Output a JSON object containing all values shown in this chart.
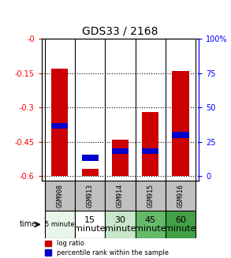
{
  "title": "GDS33 / 2168",
  "samples": [
    "GSM908",
    "GSM913",
    "GSM914",
    "GSM915",
    "GSM916"
  ],
  "time_labels": [
    "5 minute",
    "15\nminute",
    "30\nminute",
    "45\nminute",
    "60\nminute"
  ],
  "time_colors": [
    "#e8f5e9",
    "#ffffff",
    "#c8e6c9",
    "#66bb6a",
    "#43a047"
  ],
  "log_ratios": [
    -0.13,
    -0.57,
    -0.44,
    -0.32,
    -0.14
  ],
  "percentile_values": [
    -0.38,
    -0.52,
    -0.49,
    -0.49,
    -0.42
  ],
  "bar_bottom": -0.6,
  "ylim_min": -0.62,
  "ylim_max": 0.0,
  "yticks": [
    0,
    -0.15,
    -0.3,
    -0.45,
    -0.6
  ],
  "ytick_labels": [
    "-0",
    "-0.15",
    "-0.3",
    "-0.45",
    "-0.6"
  ],
  "right_yticks": [
    0,
    0.25,
    0.5,
    0.75,
    1.0
  ],
  "right_ytick_labels": [
    "0",
    "25",
    "50",
    "75",
    "100%"
  ],
  "bar_color": "#cc0000",
  "percentile_color": "#0000cc",
  "grid_color": "#000000",
  "sample_bg_color": "#c0c0c0",
  "bar_width": 0.55
}
